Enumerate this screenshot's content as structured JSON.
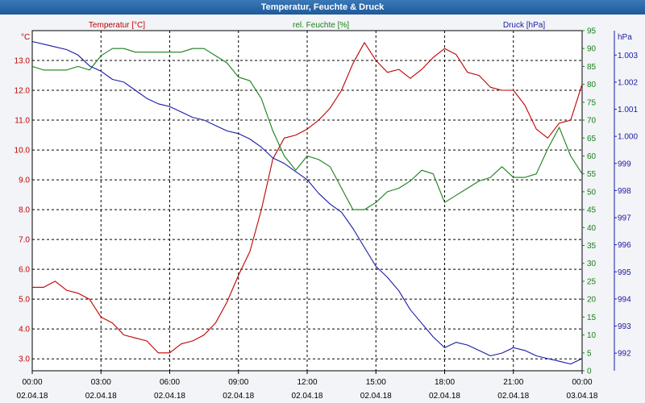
{
  "window": {
    "title": "Temperatur, Feuchte & Druck"
  },
  "chart_data": {
    "type": "line",
    "x_time_labels": [
      "00:00",
      "03:00",
      "06:00",
      "09:00",
      "12:00",
      "15:00",
      "18:00",
      "21:00",
      "00:00"
    ],
    "x_date_labels": [
      "02.04.18",
      "02.04.18",
      "02.04.18",
      "02.04.18",
      "02.04.18",
      "02.04.18",
      "02.04.18",
      "02.04.18",
      "03.04.18"
    ],
    "x_hours": [
      0,
      3,
      6,
      9,
      12,
      15,
      18,
      21,
      24
    ],
    "axes": {
      "left": {
        "unit": "°C",
        "range": [
          2.6,
          14.0
        ],
        "ticks": [
          3.0,
          4.0,
          5.0,
          6.0,
          7.0,
          8.0,
          9.0,
          10.0,
          11.0,
          12.0,
          13.0
        ],
        "tick_labels": [
          "3.0",
          "4.0",
          "5.0",
          "6.0",
          "7.0",
          "8.0",
          "9.0",
          "10.0",
          "11.0",
          "12.0",
          "13.0"
        ],
        "color": "#c00000"
      },
      "mid": {
        "unit": "%",
        "range": [
          0,
          95
        ],
        "ticks": [
          0,
          5,
          10,
          15,
          20,
          25,
          30,
          35,
          40,
          45,
          50,
          55,
          60,
          65,
          70,
          75,
          80,
          85,
          90,
          95
        ],
        "tick_labels": [
          "0",
          "5",
          "10",
          "15",
          "20",
          "25",
          "30",
          "35",
          "40",
          "45",
          "50",
          "55",
          "60",
          "65",
          "70",
          "75",
          "80",
          "85",
          "90",
          "95"
        ],
        "color": "#1a7f1a"
      },
      "right": {
        "unit": "hPa",
        "range": [
          991.35,
          1003.9
        ],
        "ticks": [
          992,
          993,
          994,
          995,
          996,
          997,
          998,
          999,
          1000,
          1001,
          1002,
          1003
        ],
        "tick_labels": [
          "992",
          "993",
          "994",
          "995",
          "996",
          "997",
          "998",
          "999",
          "1.000",
          "1.001",
          "1.002",
          "1.003"
        ],
        "color": "#1a1aa6"
      }
    },
    "series": [
      {
        "name": "Temperatur [°C]",
        "axis": "left",
        "color": "#c00000",
        "x": [
          0,
          0.5,
          1,
          1.5,
          2,
          2.5,
          3,
          3.5,
          4,
          4.5,
          5,
          5.5,
          6,
          6.5,
          7,
          7.5,
          8,
          8.5,
          9,
          9.5,
          10,
          10.5,
          11,
          11.5,
          12,
          12.5,
          13,
          13.5,
          14,
          14.5,
          15,
          15.5,
          16,
          16.5,
          17,
          17.5,
          18,
          18.5,
          19,
          19.5,
          20,
          20.5,
          21,
          21.5,
          22,
          22.5,
          23,
          23.5,
          24
        ],
        "values": [
          5.4,
          5.4,
          5.6,
          5.3,
          5.2,
          5.0,
          4.4,
          4.2,
          3.8,
          3.7,
          3.6,
          3.2,
          3.2,
          3.5,
          3.6,
          3.8,
          4.2,
          4.9,
          5.8,
          6.6,
          8.0,
          9.7,
          10.4,
          10.5,
          10.7,
          11.0,
          11.4,
          12.0,
          12.9,
          13.6,
          13.0,
          12.6,
          12.7,
          12.4,
          12.7,
          13.1,
          13.4,
          13.2,
          12.6,
          12.5,
          12.1,
          12.0,
          12.0,
          11.5,
          10.7,
          10.4,
          10.9,
          11.0,
          12.2
        ]
      },
      {
        "name": "rel. Feuchte [%]",
        "axis": "mid",
        "color": "#1a7f1a",
        "x": [
          0,
          0.5,
          1,
          1.5,
          2,
          2.5,
          3,
          3.5,
          4,
          4.5,
          5,
          5.5,
          6,
          6.5,
          7,
          7.5,
          8,
          8.5,
          9,
          9.5,
          10,
          10.5,
          11,
          11.5,
          12,
          12.5,
          13,
          13.5,
          14,
          14.5,
          15,
          15.5,
          16,
          16.5,
          17,
          17.5,
          18,
          18.5,
          19,
          19.5,
          20,
          20.5,
          21,
          21.5,
          22,
          22.5,
          23,
          23.5,
          24
        ],
        "values": [
          85,
          84,
          84,
          84,
          85,
          84,
          88,
          90,
          90,
          89,
          89,
          89,
          89,
          89,
          90,
          90,
          88,
          86,
          82,
          81,
          76,
          67,
          60,
          56,
          60,
          59,
          57,
          51,
          45,
          45,
          47,
          50,
          51,
          53,
          56,
          55,
          47,
          49,
          51,
          53,
          54,
          57,
          54,
          54,
          55,
          62,
          68,
          60,
          55
        ]
      },
      {
        "name": "Druck [hPa]",
        "axis": "right",
        "color": "#1a1aa6",
        "x": [
          0,
          0.5,
          1,
          1.5,
          2,
          2.5,
          3,
          3.5,
          4,
          4.5,
          5,
          5.5,
          6,
          6.5,
          7,
          7.5,
          8,
          8.5,
          9,
          9.5,
          10,
          10.5,
          11,
          11.5,
          12,
          12.5,
          13,
          13.5,
          14,
          14.5,
          15,
          15.5,
          16,
          16.5,
          17,
          17.5,
          18,
          18.5,
          19,
          19.5,
          20,
          20.5,
          21,
          21.5,
          22,
          22.5,
          23,
          23.5,
          24
        ],
        "values": [
          1003.5,
          1003.4,
          1003.3,
          1003.2,
          1003.0,
          1002.6,
          1002.4,
          1002.1,
          1002.0,
          1001.7,
          1001.4,
          1001.2,
          1001.1,
          1000.9,
          1000.7,
          1000.6,
          1000.4,
          1000.2,
          1000.1,
          999.9,
          999.6,
          999.2,
          999.0,
          998.7,
          998.4,
          997.9,
          997.5,
          997.2,
          996.6,
          995.9,
          995.2,
          994.8,
          994.3,
          993.6,
          993.1,
          992.6,
          992.2,
          992.4,
          992.3,
          992.1,
          991.9,
          992.0,
          992.2,
          992.1,
          991.9,
          991.8,
          991.7,
          991.6,
          991.8
        ]
      }
    ]
  }
}
